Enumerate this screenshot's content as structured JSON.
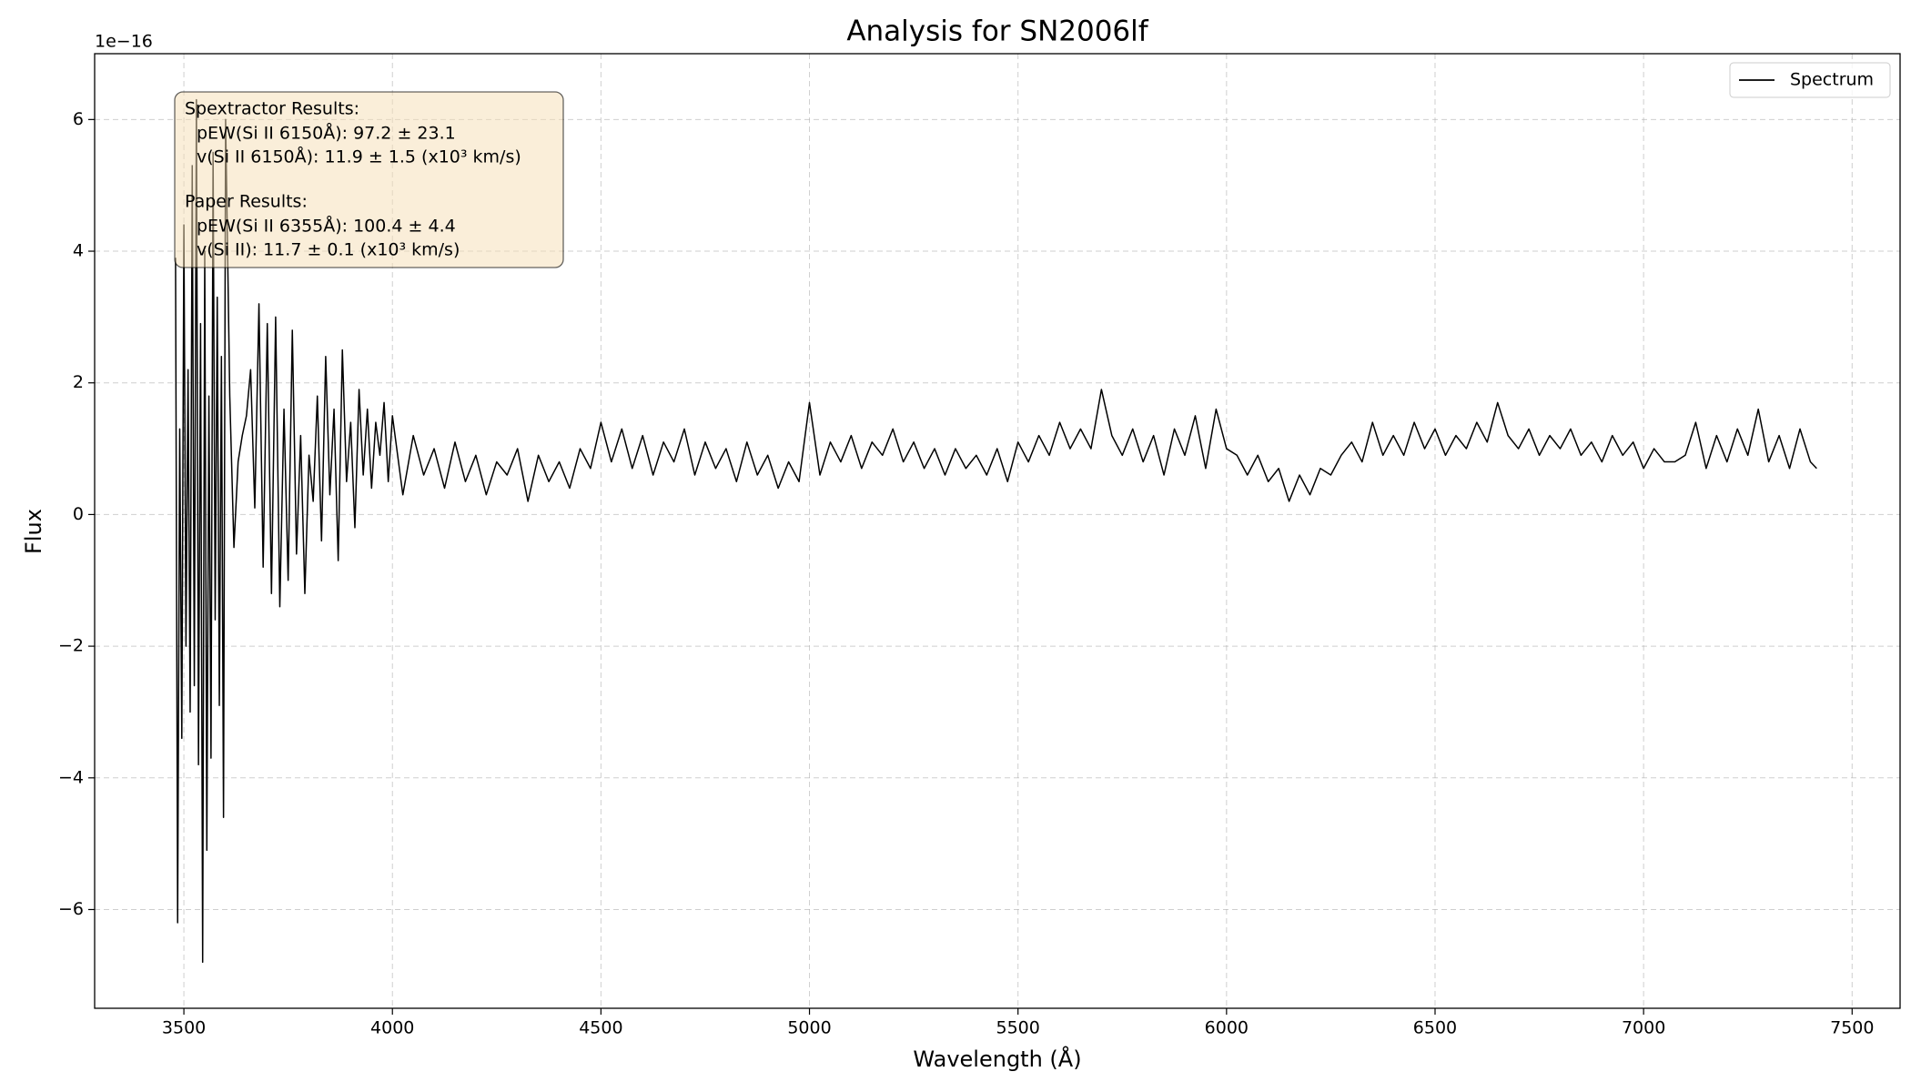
{
  "chart_data": {
    "type": "line",
    "title": "Analysis for SN2006lf",
    "x_label": "Wavelength (Å)",
    "y_label": "Flux",
    "y_offset": "1e−16",
    "xlim": [
      3286,
      7615
    ],
    "ylim": [
      -7.5,
      7.0
    ],
    "xticks": [
      3500,
      4000,
      4500,
      5000,
      5500,
      6000,
      6500,
      7000,
      7500
    ],
    "yticks": [
      {
        "value": -6,
        "label": "−6"
      },
      {
        "value": -4,
        "label": "−4"
      },
      {
        "value": -2,
        "label": "−2"
      },
      0,
      2,
      4,
      6
    ],
    "grid": true,
    "legend": "upper right",
    "annotation": [
      {
        "title": "Spextractor Results:",
        "lines": [
          "pEW(Si II 6150Å): 97.2 ± 23.1",
          "v(Si II 6150Å): 11.9 ± 1.5 (x10³ km/s)"
        ]
      },
      {
        "title": "Paper Results:",
        "lines": [
          "pEW(Si II 6355Å): 100.4 ± 4.4",
          "v(Si II): 11.7 ± 0.1 (x10³ km/s)"
        ]
      }
    ],
    "x": [
      3480,
      3485,
      3490,
      3495,
      3500,
      3505,
      3510,
      3515,
      3520,
      3525,
      3530,
      3535,
      3540,
      3545,
      3550,
      3555,
      3560,
      3565,
      3570,
      3575,
      3580,
      3585,
      3590,
      3595,
      3600,
      3610,
      3620,
      3630,
      3640,
      3650,
      3660,
      3670,
      3680,
      3690,
      3700,
      3710,
      3720,
      3730,
      3740,
      3750,
      3760,
      3770,
      3780,
      3790,
      3800,
      3810,
      3820,
      3830,
      3840,
      3850,
      3860,
      3870,
      3880,
      3890,
      3900,
      3910,
      3920,
      3930,
      3940,
      3950,
      3960,
      3970,
      3980,
      3990,
      4000,
      4025,
      4050,
      4075,
      4100,
      4125,
      4150,
      4175,
      4200,
      4225,
      4250,
      4275,
      4300,
      4325,
      4350,
      4375,
      4400,
      4425,
      4450,
      4475,
      4500,
      4525,
      4550,
      4575,
      4600,
      4625,
      4650,
      4675,
      4700,
      4725,
      4750,
      4775,
      4800,
      4825,
      4850,
      4875,
      4900,
      4925,
      4950,
      4975,
      5000,
      5025,
      5050,
      5075,
      5100,
      5125,
      5150,
      5175,
      5200,
      5225,
      5250,
      5275,
      5300,
      5325,
      5350,
      5375,
      5400,
      5425,
      5450,
      5475,
      5500,
      5525,
      5550,
      5575,
      5600,
      5625,
      5650,
      5675,
      5700,
      5725,
      5750,
      5775,
      5800,
      5825,
      5850,
      5875,
      5900,
      5925,
      5950,
      5975,
      6000,
      6025,
      6050,
      6075,
      6100,
      6125,
      6150,
      6175,
      6200,
      6225,
      6250,
      6275,
      6300,
      6325,
      6350,
      6375,
      6400,
      6425,
      6450,
      6475,
      6500,
      6525,
      6550,
      6575,
      6600,
      6625,
      6650,
      6675,
      6700,
      6725,
      6750,
      6775,
      6800,
      6825,
      6850,
      6875,
      6900,
      6925,
      6950,
      6975,
      7000,
      7025,
      7050,
      7075,
      7100,
      7125,
      7150,
      7175,
      7200,
      7225,
      7250,
      7275,
      7300,
      7325,
      7350,
      7375,
      7400,
      7415
    ],
    "series": [
      {
        "name": "Spectrum",
        "color": "#000000",
        "values": [
          3.9,
          -6.2,
          1.3,
          -3.4,
          4.4,
          -2.0,
          2.2,
          -3.0,
          5.3,
          -2.6,
          6.3,
          -3.8,
          2.9,
          -6.8,
          4.0,
          -5.1,
          1.8,
          -3.7,
          5.5,
          -1.6,
          3.3,
          -2.9,
          2.4,
          -4.6,
          6.0,
          1.8,
          -0.5,
          0.8,
          1.2,
          1.5,
          2.2,
          0.1,
          3.2,
          -0.8,
          2.9,
          -1.2,
          3.0,
          -1.4,
          1.6,
          -1.0,
          2.8,
          -0.6,
          1.2,
          -1.2,
          0.9,
          0.2,
          1.8,
          -0.4,
          2.4,
          0.3,
          1.6,
          -0.7,
          2.5,
          0.5,
          1.4,
          -0.2,
          1.9,
          0.6,
          1.6,
          0.4,
          1.4,
          0.9,
          1.7,
          0.5,
          1.5,
          0.3,
          1.2,
          0.6,
          1.0,
          0.4,
          1.1,
          0.5,
          0.9,
          0.3,
          0.8,
          0.6,
          1.0,
          0.2,
          0.9,
          0.5,
          0.8,
          0.4,
          1.0,
          0.7,
          1.4,
          0.8,
          1.3,
          0.7,
          1.2,
          0.6,
          1.1,
          0.8,
          1.3,
          0.6,
          1.1,
          0.7,
          1.0,
          0.5,
          1.1,
          0.6,
          0.9,
          0.4,
          0.8,
          0.5,
          1.7,
          0.6,
          1.1,
          0.8,
          1.2,
          0.7,
          1.1,
          0.9,
          1.3,
          0.8,
          1.1,
          0.7,
          1.0,
          0.6,
          1.0,
          0.7,
          0.9,
          0.6,
          1.0,
          0.5,
          1.1,
          0.8,
          1.2,
          0.9,
          1.4,
          1.0,
          1.3,
          1.0,
          1.9,
          1.2,
          0.9,
          1.3,
          0.8,
          1.2,
          0.6,
          1.3,
          0.9,
          1.5,
          0.7,
          1.6,
          1.0,
          0.9,
          0.6,
          0.9,
          0.5,
          0.7,
          0.2,
          0.6,
          0.3,
          0.7,
          0.6,
          0.9,
          1.1,
          0.8,
          1.4,
          0.9,
          1.2,
          0.9,
          1.4,
          1.0,
          1.3,
          0.9,
          1.2,
          1.0,
          1.4,
          1.1,
          1.7,
          1.2,
          1.0,
          1.3,
          0.9,
          1.2,
          1.0,
          1.3,
          0.9,
          1.1,
          0.8,
          1.2,
          0.9,
          1.1,
          0.7,
          1.0,
          0.8,
          0.8,
          0.9,
          1.4,
          0.7,
          1.2,
          0.8,
          1.3,
          0.9,
          1.6,
          0.8,
          1.2,
          0.7,
          1.3,
          0.8,
          0.7
        ]
      }
    ]
  }
}
